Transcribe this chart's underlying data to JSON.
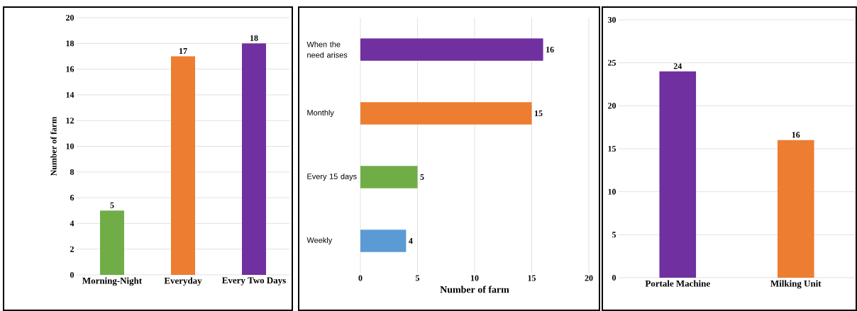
{
  "chart_data": [
    {
      "type": "bar",
      "ylabel": "Number of farm",
      "categories": [
        "Morning-Night",
        "Everyday",
        "Every Two Days"
      ],
      "values": [
        5,
        17,
        18
      ],
      "colors": [
        "#70ad47",
        "#ed7d31",
        "#7030a0"
      ],
      "ylim": [
        0,
        20
      ],
      "yticks": [
        0,
        2,
        4,
        6,
        8,
        10,
        12,
        14,
        16,
        18,
        20
      ],
      "grid": "y",
      "data_labels": true
    },
    {
      "type": "bar",
      "orientation": "horizontal",
      "xlabel": "Number of farm",
      "categories": [
        "When the need arises",
        "Monthly",
        "Every 15 days",
        "Weekly"
      ],
      "values": [
        16,
        15,
        5,
        4
      ],
      "colors": [
        "#7030a0",
        "#ed7d31",
        "#70ad47",
        "#5b9bd5"
      ],
      "xlim": [
        0,
        20
      ],
      "xticks": [
        0,
        5,
        10,
        15,
        20
      ],
      "grid": "x",
      "data_labels": true
    },
    {
      "type": "bar",
      "categories": [
        "Portale Machine",
        "Milking Unit"
      ],
      "values": [
        24,
        16
      ],
      "colors": [
        "#7030a0",
        "#ed7d31"
      ],
      "ylim": [
        0,
        30
      ],
      "yticks": [
        0,
        5,
        10,
        15,
        20,
        25,
        30
      ],
      "grid": "y",
      "data_labels": true
    }
  ]
}
